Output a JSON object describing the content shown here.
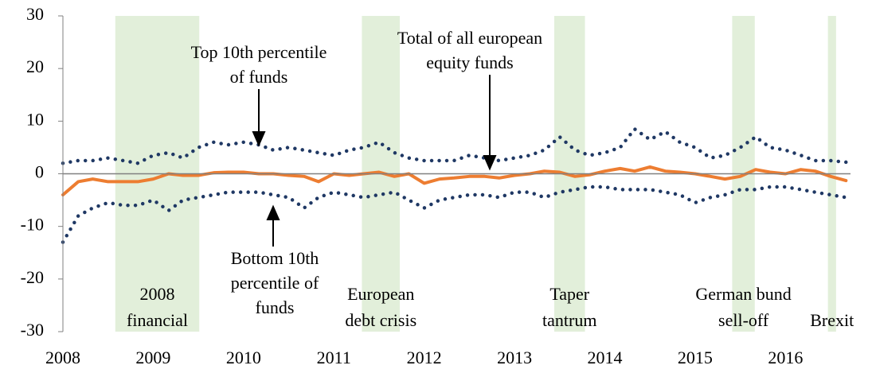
{
  "chart_data": {
    "type": "line",
    "x": [
      2008,
      2008.17,
      2008.33,
      2008.5,
      2008.67,
      2008.83,
      2009,
      2009.17,
      2009.33,
      2009.5,
      2009.67,
      2009.83,
      2010,
      2010.17,
      2010.33,
      2010.5,
      2010.67,
      2010.83,
      2011,
      2011.17,
      2011.33,
      2011.5,
      2011.67,
      2011.83,
      2012,
      2012.17,
      2012.33,
      2012.5,
      2012.67,
      2012.83,
      2013,
      2013.17,
      2013.33,
      2013.5,
      2013.67,
      2013.83,
      2014,
      2014.17,
      2014.33,
      2014.5,
      2014.67,
      2014.83,
      2015,
      2015.17,
      2015.33,
      2015.5,
      2015.67,
      2015.83,
      2016,
      2016.17,
      2016.33,
      2016.5,
      2016.67
    ],
    "series": [
      {
        "name": "Top 10th percentile of funds",
        "color": "#1f3864",
        "style": "dotted",
        "values": [
          2,
          2.5,
          2.5,
          3,
          2.5,
          2,
          3.5,
          4,
          3,
          5,
          6,
          5.5,
          6,
          5.5,
          4.5,
          5,
          4.5,
          4,
          3.5,
          4.5,
          5,
          6,
          4,
          3,
          2.5,
          2.5,
          2.5,
          3.5,
          3,
          2.5,
          3,
          3.5,
          4.5,
          7,
          4.5,
          3.5,
          4,
          5,
          8.5,
          6.5,
          8,
          6,
          5,
          3,
          3.5,
          5,
          7,
          5,
          4.5,
          3.5,
          2.5,
          2.5,
          2.2
        ]
      },
      {
        "name": "Bottom 10th percentile of funds",
        "color": "#1f3864",
        "style": "dotted",
        "values": [
          -13,
          -8,
          -6.5,
          -5.5,
          -6,
          -6,
          -5,
          -7,
          -5,
          -4.5,
          -4,
          -3.5,
          -3.5,
          -3.5,
          -4,
          -4.5,
          -6.5,
          -4.5,
          -3.5,
          -4,
          -4.5,
          -4,
          -3.5,
          -5,
          -6.5,
          -5,
          -4.5,
          -4,
          -4,
          -4.5,
          -3.5,
          -3.5,
          -4.5,
          -3.5,
          -3,
          -2.5,
          -2.5,
          -3,
          -3,
          -3,
          -3.5,
          -4,
          -5.5,
          -4.5,
          -4,
          -3,
          -3,
          -2.5,
          -2.5,
          -3,
          -3.5,
          -4,
          -4.5
        ]
      },
      {
        "name": "Total of all european equity funds",
        "color": "#ed7d31",
        "style": "solid",
        "values": [
          -4,
          -1.5,
          -1,
          -1.5,
          -1.5,
          -1.5,
          -1,
          0,
          -0.3,
          -0.3,
          0.2,
          0.3,
          0.3,
          0,
          0,
          -0.3,
          -0.5,
          -1.5,
          0,
          -0.3,
          0,
          0.3,
          -0.5,
          0,
          -1.8,
          -1,
          -0.8,
          -0.5,
          -0.5,
          -0.8,
          -0.3,
          0,
          0.5,
          0.3,
          -0.5,
          -0.2,
          0.5,
          1,
          0.5,
          1.3,
          0.5,
          0.3,
          0,
          -0.5,
          -1,
          -0.5,
          0.8,
          0.3,
          0,
          0.8,
          0.5,
          -0.5,
          -1.3
        ]
      }
    ],
    "annotations": [
      {
        "lines": [
          "Top 10th percentile",
          "of funds"
        ]
      },
      {
        "lines": [
          "Bottom 10th",
          "percentile of",
          "funds"
        ]
      },
      {
        "lines": [
          "Total of all european",
          "equity funds"
        ]
      }
    ],
    "shaded_periods": [
      {
        "start": 2008.58,
        "end": 2009.51,
        "lines": [
          "2008",
          "financial"
        ]
      },
      {
        "start": 2011.31,
        "end": 2011.73,
        "lines": [
          "European",
          "debt crisis"
        ]
      },
      {
        "start": 2013.44,
        "end": 2013.78,
        "lines": [
          "Taper",
          "tantrum"
        ]
      },
      {
        "start": 2015.41,
        "end": 2015.66,
        "lines": [
          "German bund",
          "sell-off"
        ]
      },
      {
        "start": 2016.47,
        "end": 2016.56,
        "lines": [
          "Brexit"
        ]
      }
    ],
    "shade_color": "#e2efda",
    "xlim": [
      2008,
      2016.72
    ],
    "xticks": [
      2008,
      2009,
      2010,
      2011,
      2012,
      2013,
      2014,
      2015,
      2016
    ],
    "ylim": [
      -30,
      30
    ],
    "yticks": [
      -30,
      -20,
      -10,
      0,
      10,
      20,
      30
    ]
  }
}
